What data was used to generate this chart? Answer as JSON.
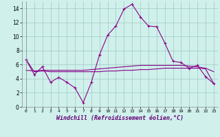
{
  "xlabel": "Windchill (Refroidissement éolien,°C)",
  "bg_color": "#cff0eb",
  "line_color": "#880088",
  "grid_color": "#a0c8c4",
  "xlim": [
    -0.5,
    23.5
  ],
  "ylim": [
    0,
    15
  ],
  "yticks": [
    0,
    2,
    4,
    6,
    8,
    10,
    12,
    14
  ],
  "xticks": [
    0,
    1,
    2,
    3,
    4,
    5,
    6,
    7,
    8,
    9,
    10,
    11,
    12,
    13,
    14,
    15,
    16,
    17,
    18,
    19,
    20,
    21,
    22,
    23
  ],
  "hours": [
    0,
    1,
    2,
    3,
    4,
    5,
    6,
    7,
    8,
    9,
    10,
    11,
    12,
    13,
    14,
    15,
    16,
    17,
    18,
    19,
    20,
    21,
    22,
    23
  ],
  "line1": [
    6.7,
    4.6,
    5.7,
    3.5,
    4.2,
    3.5,
    2.7,
    0.6,
    3.5,
    7.4,
    10.2,
    11.5,
    13.9,
    14.6,
    12.8,
    11.5,
    11.4,
    9.1,
    6.5,
    6.3,
    5.5,
    5.9,
    4.3,
    3.3
  ],
  "line2": [
    5.2,
    5.1,
    5.2,
    5.2,
    5.2,
    5.2,
    5.2,
    5.2,
    5.3,
    5.4,
    5.5,
    5.6,
    5.7,
    5.8,
    5.9,
    5.9,
    5.9,
    5.9,
    5.9,
    5.9,
    5.8,
    5.7,
    5.5,
    5.0
  ],
  "line3": [
    6.7,
    5.0,
    5.1,
    5.0,
    5.0,
    5.0,
    5.0,
    5.0,
    5.0,
    5.0,
    5.1,
    5.1,
    5.2,
    5.2,
    5.3,
    5.3,
    5.4,
    5.5,
    5.5,
    5.5,
    5.5,
    5.5,
    5.4,
    3.3
  ]
}
